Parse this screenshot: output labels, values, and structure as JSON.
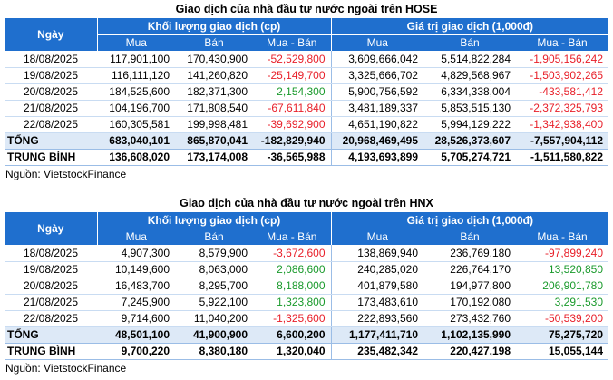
{
  "colors": {
    "header_bg": "#1f6fce",
    "negative": "#e8202a",
    "positive": "#1a9a2c",
    "sum_bg": "#dde9f7"
  },
  "hose": {
    "title": "Giao dịch của nhà đầu tư nước ngoài trên HOSE",
    "header": {
      "date": "Ngày",
      "volume_group": "Khối lượng giao dịch (cp)",
      "value_group": "Giá trị giao dịch (1,000đ)",
      "buy": "Mua",
      "sell": "Bán",
      "net": "Mua - Bán"
    },
    "rows": [
      {
        "date": "18/08/2025",
        "v_buy": "117,901,100",
        "v_sell": "170,430,900",
        "v_net": "-52,529,800",
        "val_buy": "3,609,666,042",
        "val_sell": "5,514,822,284",
        "val_net": "-1,905,156,242"
      },
      {
        "date": "19/08/2025",
        "v_buy": "116,111,120",
        "v_sell": "141,260,820",
        "v_net": "-25,149,700",
        "val_buy": "3,325,666,702",
        "val_sell": "4,829,568,967",
        "val_net": "-1,503,902,265"
      },
      {
        "date": "20/08/2025",
        "v_buy": "184,525,600",
        "v_sell": "182,371,300",
        "v_net": "2,154,300",
        "val_buy": "5,900,756,592",
        "val_sell": "6,334,338,004",
        "val_net": "-433,581,412"
      },
      {
        "date": "21/08/2025",
        "v_buy": "104,196,700",
        "v_sell": "171,808,540",
        "v_net": "-67,611,840",
        "val_buy": "3,481,189,337",
        "val_sell": "5,853,515,130",
        "val_net": "-2,372,325,793"
      },
      {
        "date": "22/08/2025",
        "v_buy": "160,305,581",
        "v_sell": "199,998,481",
        "v_net": "-39,692,900",
        "val_buy": "4,651,190,822",
        "val_sell": "5,994,129,222",
        "val_net": "-1,342,938,400"
      }
    ],
    "total": {
      "label": "TỔNG",
      "v_buy": "683,040,101",
      "v_sell": "865,870,041",
      "v_net": "-182,829,940",
      "val_buy": "20,968,469,495",
      "val_sell": "28,526,373,607",
      "val_net": "-7,557,904,112"
    },
    "average": {
      "label": "TRUNG BÌNH",
      "v_buy": "136,608,020",
      "v_sell": "173,174,008",
      "v_net": "-36,565,988",
      "val_buy": "4,193,693,899",
      "val_sell": "5,705,274,721",
      "val_net": "-1,511,580,822"
    },
    "source": "Nguồn: VietstockFinance"
  },
  "hnx": {
    "title": "Giao dịch của nhà đầu tư nước ngoài trên HNX",
    "header": {
      "date": "Ngày",
      "volume_group": "Khối lượng giao dịch (cp)",
      "value_group": "Giá trị giao dịch (1,000đ)",
      "buy": "Mua",
      "sell": "Bán",
      "net": "Mua - Bán"
    },
    "rows": [
      {
        "date": "18/08/2025",
        "v_buy": "4,907,300",
        "v_sell": "8,579,900",
        "v_net": "-3,672,600",
        "val_buy": "138,869,940",
        "val_sell": "236,769,180",
        "val_net": "-97,899,240"
      },
      {
        "date": "19/08/2025",
        "v_buy": "10,149,600",
        "v_sell": "8,063,000",
        "v_net": "2,086,600",
        "val_buy": "240,285,020",
        "val_sell": "226,764,170",
        "val_net": "13,520,850"
      },
      {
        "date": "20/08/2025",
        "v_buy": "16,483,700",
        "v_sell": "8,295,700",
        "v_net": "8,188,000",
        "val_buy": "401,879,580",
        "val_sell": "194,977,800",
        "val_net": "206,901,780"
      },
      {
        "date": "21/08/2025",
        "v_buy": "7,245,900",
        "v_sell": "5,922,100",
        "v_net": "1,323,800",
        "val_buy": "173,483,610",
        "val_sell": "170,192,080",
        "val_net": "3,291,530"
      },
      {
        "date": "22/08/2025",
        "v_buy": "9,714,600",
        "v_sell": "11,040,200",
        "v_net": "-1,325,600",
        "val_buy": "222,893,560",
        "val_sell": "273,432,760",
        "val_net": "-50,539,200"
      }
    ],
    "total": {
      "label": "TỔNG",
      "v_buy": "48,501,100",
      "v_sell": "41,900,900",
      "v_net": "6,600,200",
      "val_buy": "1,177,411,710",
      "val_sell": "1,102,135,990",
      "val_net": "75,275,720"
    },
    "average": {
      "label": "TRUNG BÌNH",
      "v_buy": "9,700,220",
      "v_sell": "8,380,180",
      "v_net": "1,320,040",
      "val_buy": "235,482,342",
      "val_sell": "220,427,198",
      "val_net": "15,055,144"
    },
    "source": "Nguồn: VietstockFinance"
  }
}
